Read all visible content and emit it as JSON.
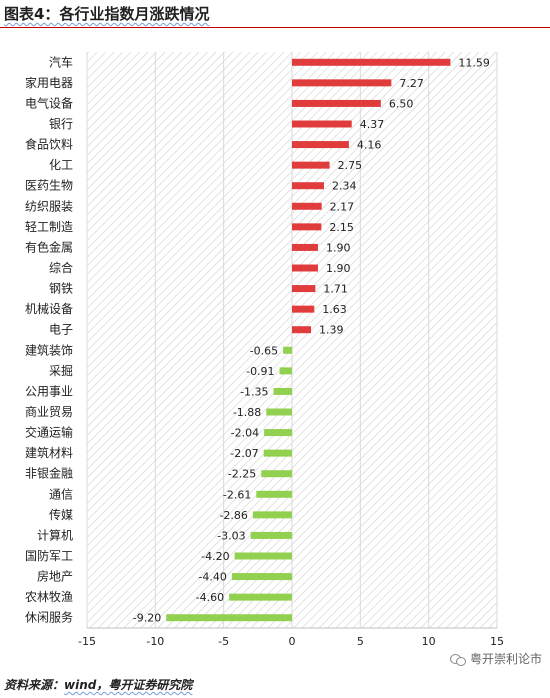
{
  "header": {
    "title": "图表4：各行业指数月涨跌情况"
  },
  "footer": {
    "source_prefix": "资料来源：",
    "source_text": "wind，粤开证券研究院"
  },
  "watermark": {
    "text": "粤开崇利论市",
    "icon": "chat-bubbles-icon"
  },
  "colors": {
    "positive": "#e03c3c",
    "negative": "#92d050",
    "grid": "#d9d9d9",
    "hatch": "#cfcfcf"
  },
  "chart_data": {
    "type": "bar",
    "orientation": "horizontal",
    "categories": [
      "汽车",
      "家用电器",
      "电气设备",
      "银行",
      "食品饮料",
      "化工",
      "医药生物",
      "纺织服装",
      "轻工制造",
      "有色金属",
      "综合",
      "钢铁",
      "机械设备",
      "电子",
      "建筑装饰",
      "采掘",
      "公用事业",
      "商业贸易",
      "交通运输",
      "建筑材料",
      "非银金融",
      "通信",
      "传媒",
      "计算机",
      "国防军工",
      "房地产",
      "农林牧渔",
      "休闲服务"
    ],
    "values": [
      11.59,
      7.27,
      6.5,
      4.37,
      4.16,
      2.75,
      2.34,
      2.17,
      2.15,
      1.9,
      1.9,
      1.71,
      1.63,
      1.39,
      -0.65,
      -0.91,
      -1.35,
      -1.88,
      -2.04,
      -2.07,
      -2.25,
      -2.61,
      -2.86,
      -3.03,
      -4.2,
      -4.4,
      -4.6,
      -9.2
    ],
    "value_labels": [
      "11.59",
      "7.27",
      "6.50",
      "4.37",
      "4.16",
      "2.75",
      "2.34",
      "2.17",
      "2.15",
      "1.90",
      "1.90",
      "1.71",
      "1.63",
      "1.39",
      "-0.65",
      "-0.91",
      "-1.35",
      "-1.88",
      "-2.04",
      "-2.07",
      "-2.25",
      "-2.61",
      "-2.86",
      "-3.03",
      "-4.20",
      "-4.40",
      "-4.60",
      "-9.20"
    ],
    "xlim": [
      -15,
      15
    ],
    "xticks": [
      -15,
      -10,
      -5,
      0,
      5,
      10,
      15
    ],
    "xtick_labels": [
      "-15",
      "-10",
      "-5",
      "0",
      "5",
      "10",
      "15"
    ],
    "grid": true,
    "legend": false
  }
}
